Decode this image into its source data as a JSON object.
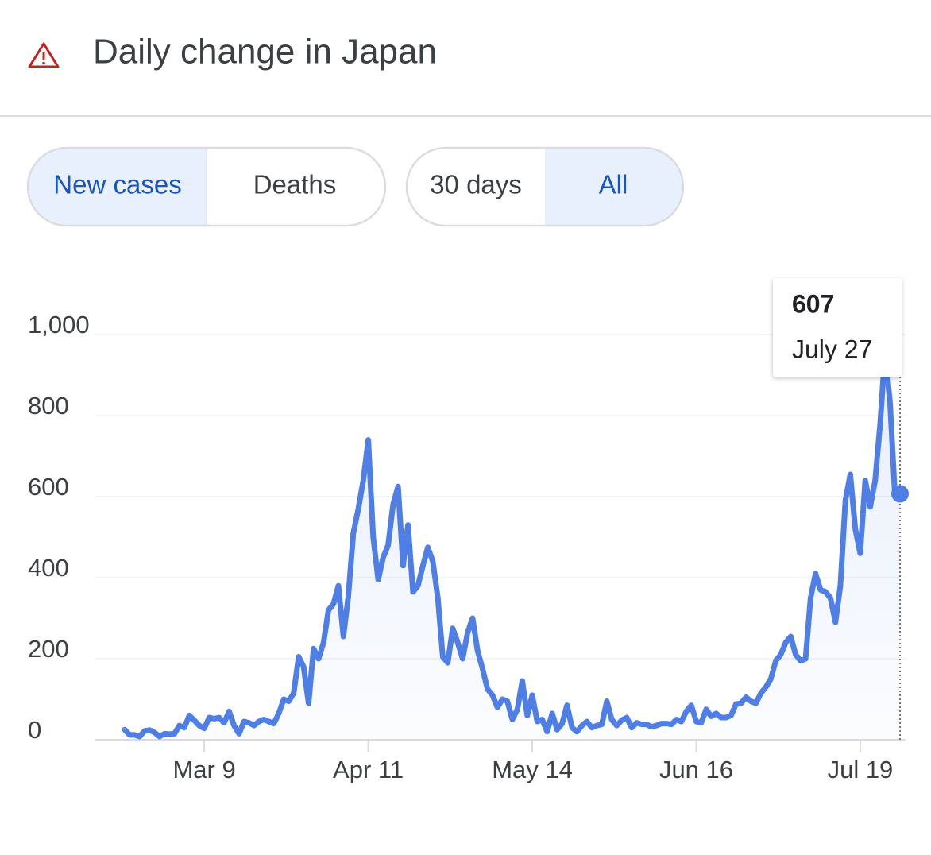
{
  "header": {
    "title": "Daily change in Japan"
  },
  "tabs": {
    "metric": [
      "New cases",
      "Deaths"
    ],
    "range": [
      "30 days",
      "All"
    ]
  },
  "chart_data": {
    "type": "line",
    "color": "#4f7fe5",
    "categories": [
      null,
      null,
      null,
      null,
      null,
      null,
      null,
      null,
      null,
      null,
      null,
      null,
      null,
      null,
      null,
      null,
      "Mar 9",
      null,
      null,
      null,
      null,
      null,
      null,
      null,
      null,
      null,
      null,
      null,
      null,
      null,
      null,
      null,
      null,
      null,
      null,
      null,
      null,
      null,
      null,
      null,
      null,
      null,
      null,
      null,
      null,
      null,
      null,
      null,
      null,
      "Apr 11",
      null,
      null,
      null,
      null,
      null,
      null,
      null,
      null,
      null,
      null,
      null,
      null,
      null,
      null,
      null,
      null,
      null,
      null,
      null,
      null,
      null,
      null,
      null,
      null,
      null,
      null,
      null,
      null,
      null,
      null,
      null,
      null,
      "May 14",
      null,
      null,
      null,
      null,
      null,
      null,
      null,
      null,
      null,
      null,
      null,
      null,
      null,
      null,
      null,
      null,
      null,
      null,
      null,
      null,
      null,
      null,
      null,
      null,
      null,
      null,
      null,
      null,
      null,
      null,
      null,
      null,
      "Jun 16",
      null,
      null,
      null,
      null,
      null,
      null,
      null,
      null,
      null,
      null,
      null,
      null,
      null,
      null,
      null,
      null,
      null,
      null,
      null,
      null,
      null,
      null,
      null,
      null,
      null,
      null,
      null,
      null,
      null,
      null,
      null,
      null,
      "Jul 19",
      null,
      null,
      null,
      null,
      null,
      null,
      null,
      null
    ],
    "values": [
      25,
      12,
      12,
      8,
      22,
      24,
      18,
      8,
      15,
      14,
      15,
      35,
      30,
      60,
      48,
      35,
      28,
      55,
      52,
      55,
      42,
      70,
      35,
      15,
      45,
      42,
      35,
      45,
      50,
      45,
      40,
      65,
      100,
      95,
      115,
      205,
      180,
      90,
      225,
      200,
      240,
      320,
      335,
      380,
      255,
      355,
      510,
      570,
      640,
      740,
      500,
      395,
      450,
      480,
      580,
      625,
      430,
      530,
      365,
      380,
      430,
      475,
      440,
      350,
      205,
      190,
      275,
      240,
      200,
      265,
      300,
      220,
      175,
      125,
      110,
      80,
      100,
      95,
      50,
      75,
      145,
      60,
      110,
      45,
      50,
      20,
      65,
      25,
      40,
      85,
      30,
      20,
      35,
      45,
      30,
      35,
      38,
      95,
      50,
      35,
      48,
      55,
      30,
      42,
      38,
      38,
      32,
      35,
      40,
      40,
      38,
      50,
      45,
      70,
      85,
      45,
      42,
      75,
      58,
      65,
      55,
      55,
      60,
      88,
      90,
      105,
      95,
      90,
      115,
      130,
      150,
      195,
      210,
      240,
      255,
      210,
      195,
      200,
      350,
      410,
      370,
      365,
      350,
      290,
      380,
      590,
      655,
      520,
      460,
      640,
      575,
      640,
      780,
      960,
      830,
      600,
      607
    ],
    "ylim": [
      0,
      1000
    ],
    "yticks": [
      0,
      200,
      400,
      600,
      800,
      {
        "value": 1000,
        "label": "1,000"
      }
    ],
    "grid": true,
    "tooltip_date": "July 27"
  }
}
